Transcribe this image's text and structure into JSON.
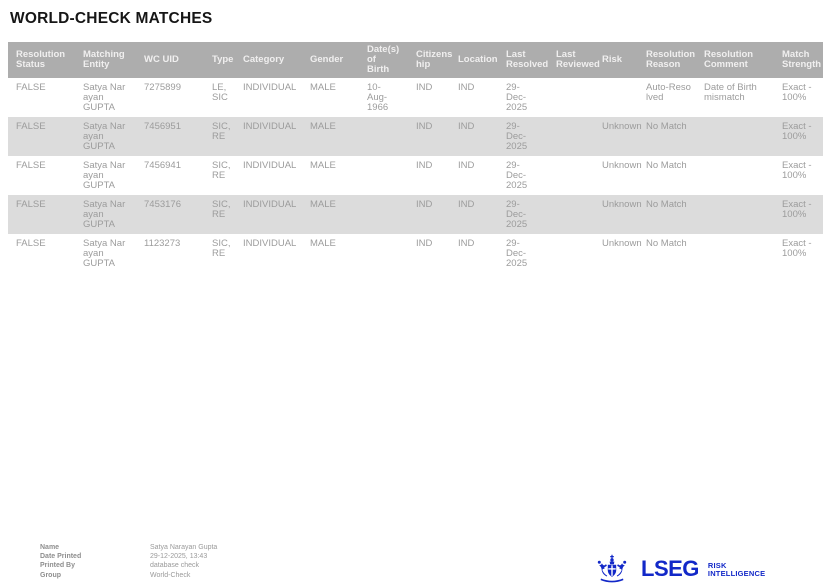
{
  "page": {
    "title": "WORLD-CHECK MATCHES"
  },
  "table": {
    "headers": [
      "Resolution\nStatus",
      "Matching\nEntity",
      "WC UID",
      "Type",
      "Category",
      "Gender",
      "Date(s) of\nBirth",
      "Citizens\nhip",
      "Location",
      "Last\nResolved",
      "Last\nReviewed",
      "Risk",
      "Resolution\nReason",
      "Resolution\nComment",
      "Match\nStrength"
    ],
    "rows": [
      {
        "shaded": false,
        "cells": [
          "FALSE",
          "Satya Nar\nayan GUPTA",
          "7275899",
          "LE,\nSIC",
          "INDIVIDUAL",
          "MALE",
          "10-\nAug-1966",
          "IND",
          "IND",
          "29-\nDec-2025",
          "",
          "",
          "Auto-Reso\nlved",
          "Date of Birth\nmismatch",
          "Exact -\n100%"
        ]
      },
      {
        "shaded": true,
        "cells": [
          "FALSE",
          "Satya Nar\nayan GUPTA",
          "7456951",
          "SIC,\nRE",
          "INDIVIDUAL",
          "MALE",
          "",
          "IND",
          "IND",
          "29-\nDec-2025",
          "",
          "Unknown",
          "No Match",
          "",
          "Exact -\n100%"
        ]
      },
      {
        "shaded": false,
        "cells": [
          "FALSE",
          "Satya Nar\nayan GUPTA",
          "7456941",
          "SIC,\nRE",
          "INDIVIDUAL",
          "MALE",
          "",
          "IND",
          "IND",
          "29-\nDec-2025",
          "",
          "Unknown",
          "No Match",
          "",
          "Exact -\n100%"
        ]
      },
      {
        "shaded": true,
        "cells": [
          "FALSE",
          "Satya Nar\nayan GUPTA",
          "7453176",
          "SIC,\nRE",
          "INDIVIDUAL",
          "MALE",
          "",
          "IND",
          "IND",
          "29-\nDec-2025",
          "",
          "Unknown",
          "No Match",
          "",
          "Exact -\n100%"
        ]
      },
      {
        "shaded": false,
        "cells": [
          "FALSE",
          "Satya Nar\nayan GUPTA",
          "1123273",
          "SIC,\nRE",
          "INDIVIDUAL",
          "MALE",
          "",
          "IND",
          "IND",
          "29-\nDec-2025",
          "",
          "Unknown",
          "No Match",
          "",
          "Exact -\n100%"
        ]
      }
    ]
  },
  "footer": {
    "fields": [
      {
        "label": "Name",
        "value": "Satya Narayan Gupta"
      },
      {
        "label": "Date Printed",
        "value": "29-12-2025, 13:43"
      },
      {
        "label": "Printed By",
        "value": "database check"
      },
      {
        "label": "Group",
        "value": "World-Check"
      }
    ],
    "logo": {
      "wordmark": "LSEG",
      "tagline_line1": "RISK",
      "tagline_line2": "INTELLIGENCE",
      "brand_color": "#1228C8",
      "emblem_icon": "lseg-crest-icon"
    }
  }
}
